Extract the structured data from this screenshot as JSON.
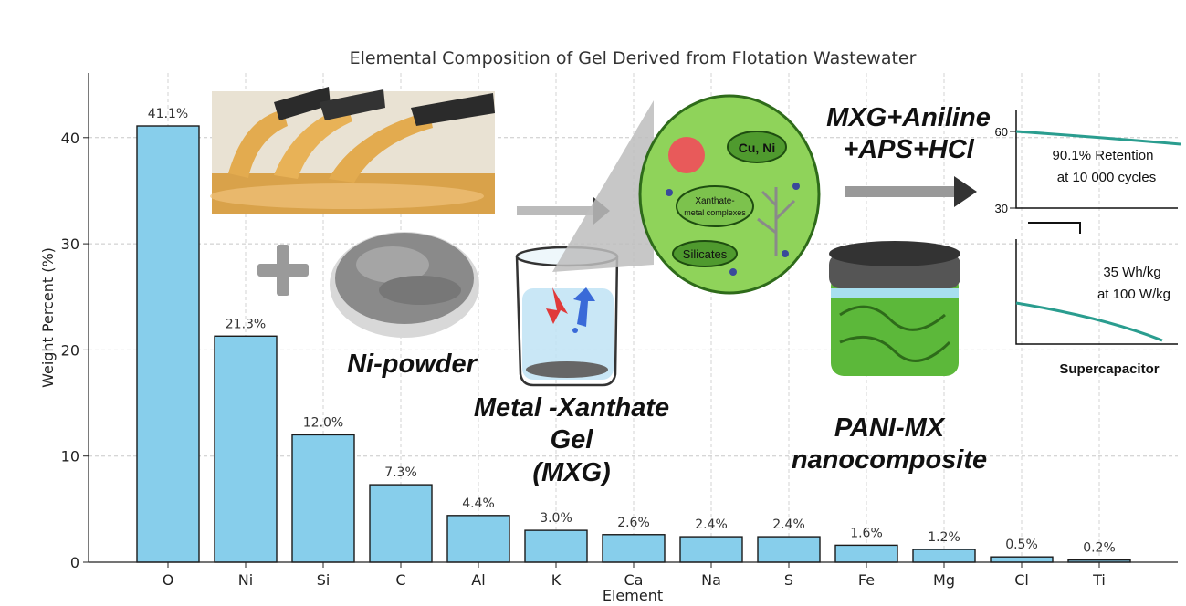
{
  "chart_data": {
    "type": "bar",
    "title": "Elemental Composition of Gel Derived from Flotation Wastewater",
    "xlabel": "Element",
    "ylabel": "Weight Percent (%)",
    "categories": [
      "O",
      "Ni",
      "Si",
      "C",
      "Al",
      "K",
      "Ca",
      "Na",
      "S",
      "Fe",
      "Mg",
      "Cl",
      "Ti"
    ],
    "values": [
      41.1,
      21.3,
      12.0,
      7.3,
      4.4,
      3.0,
      2.6,
      2.4,
      2.4,
      1.6,
      1.2,
      0.5,
      0.2
    ],
    "value_labels": [
      "41.1%",
      "21.3%",
      "12.0%",
      "7.3%",
      "4.4%",
      "3.0%",
      "2.6%",
      "2.4%",
      "2.4%",
      "1.6%",
      "1.2%",
      "0.5%",
      "0.2%"
    ],
    "yticks": [
      0,
      10,
      20,
      30,
      40
    ],
    "ylim": [
      0,
      46
    ],
    "grid": true,
    "bar_color": "#87ceeb",
    "edge_color": "#1a1a1a"
  },
  "overlay": {
    "ni_powder": "Ni-powder",
    "mxg_line1": "Metal -Xanthate",
    "mxg_line2": "Gel",
    "mxg_line3": "(MXG)",
    "reagents_line1": "MXG+Aniline",
    "reagents_line2": "+APS+HCl",
    "pani_line1": "PANI-MX",
    "pani_line2": "nanocomposite",
    "cell_label_cu_ni": "Cu, Ni",
    "cell_label_xanthate_1": "Xanthate-",
    "cell_label_xanthate_2": "metal complexes",
    "cell_label_silicates": "Silicates",
    "graph_top_tick_high": "60",
    "graph_top_tick_low": "30",
    "retention_line1": "90.1% Retention",
    "retention_line2": "at 10 000 cycles",
    "energy_line1": "35 Wh/kg",
    "energy_line2": "at 100 W/kg",
    "supercapacitor": "Supercapacitor",
    "colors": {
      "cell_fill": "#8fd35a",
      "cell_edge": "#2e6b1a",
      "gel_green": "#5cb83a",
      "curve": "#2a9d8f",
      "wastewater": "#e0a84a",
      "powder": "#8a8a8a"
    }
  }
}
